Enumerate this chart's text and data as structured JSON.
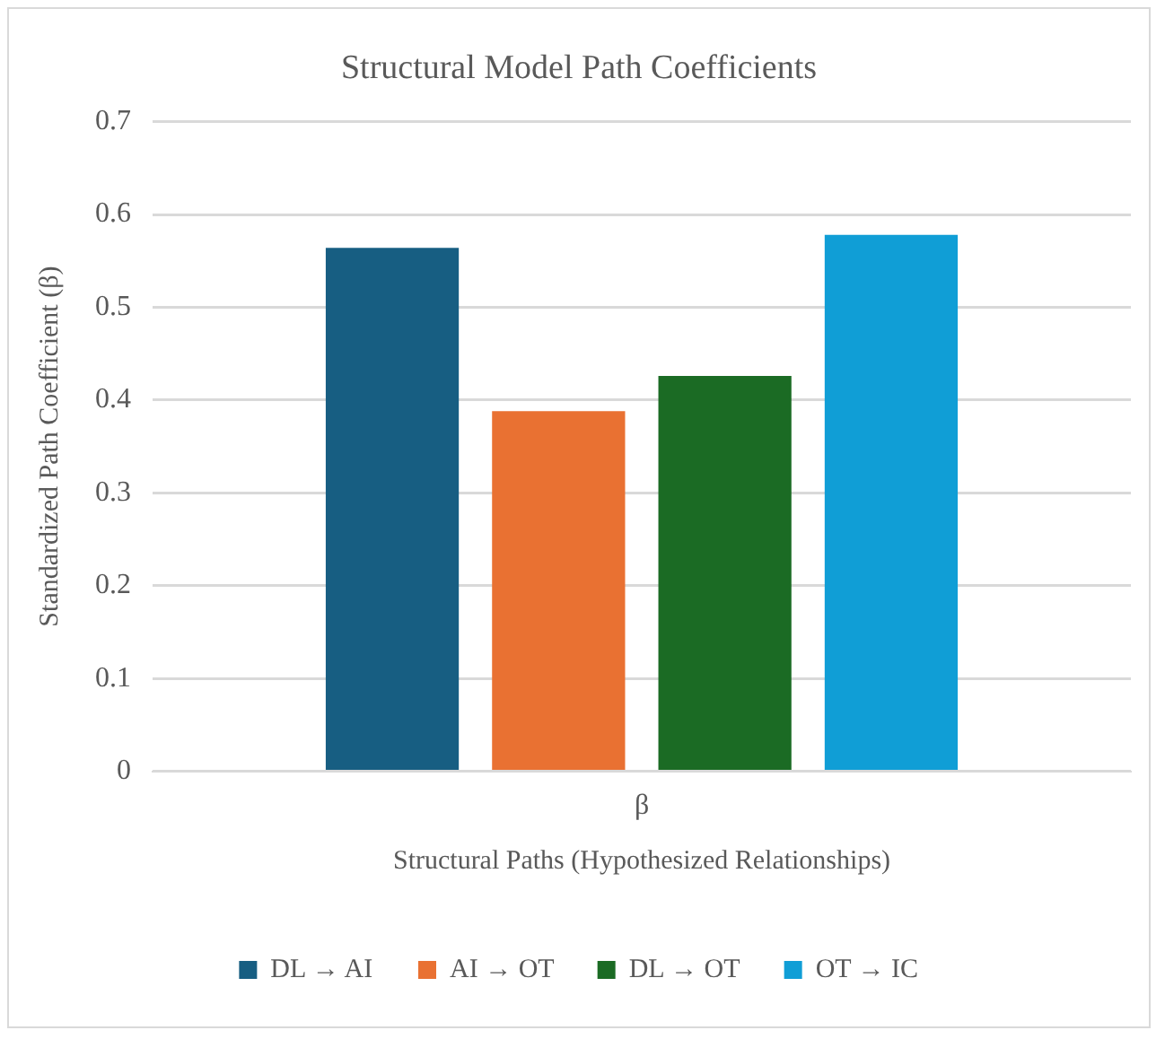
{
  "chart_data": {
    "type": "bar",
    "title": "Structural Model Path Coefficients",
    "xlabel": "Structural Paths (Hypothesized Relationships)",
    "ylabel": "Standardized Path Coefficient (β)",
    "categories": [
      "β"
    ],
    "series": [
      {
        "name": "DL → AI",
        "color": "#175e82",
        "values": [
          0.564
        ]
      },
      {
        "name": "AI → OT",
        "color": "#e97132",
        "values": [
          0.388
        ]
      },
      {
        "name": "DL → OT",
        "color": "#1b6b24",
        "values": [
          0.426
        ]
      },
      {
        "name": "OT → IC",
        "color": "#109ed6",
        "values": [
          0.578
        ]
      }
    ],
    "ylim": [
      0,
      0.7
    ],
    "yticks": [
      0,
      0.1,
      0.2,
      0.3,
      0.4,
      0.5,
      0.6,
      0.7
    ],
    "grid": "y",
    "legend": "bottom"
  }
}
